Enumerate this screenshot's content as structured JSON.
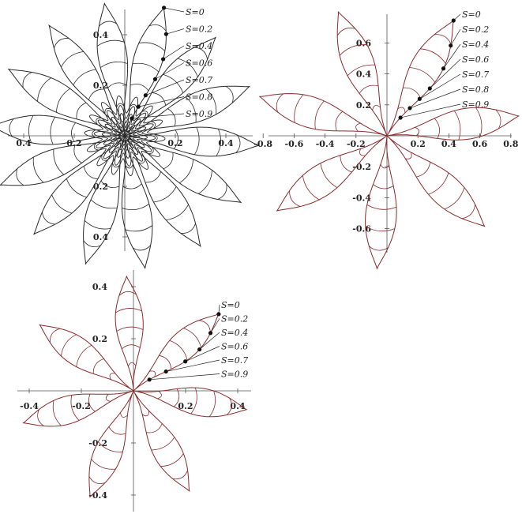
{
  "panels": [
    {
      "id": "panel-1",
      "color": "#2a2a2a",
      "petals": 14,
      "x_ticks": [
        {
          "value": -0.4,
          "label": "0.4"
        },
        {
          "value": -0.2,
          "label": "0.2"
        },
        {
          "value": 0.2,
          "label": "0.2"
        },
        {
          "value": 0.4,
          "label": "0.4"
        }
      ],
      "y_ticks": [
        {
          "value": 0.4,
          "label": "0.4"
        },
        {
          "value": 0.2,
          "label": "0.2"
        },
        {
          "value": -0.2,
          "label": "0.2"
        },
        {
          "value": -0.4,
          "label": "0.4"
        }
      ],
      "s_labels": [
        "S=0",
        "S=0.2",
        "S=0.4",
        "S=0.6",
        "S=0.7",
        "S=0.8",
        "S=0.9"
      ]
    },
    {
      "id": "panel-2",
      "color": "#8b2a2a",
      "petals": 7,
      "x_ticks": [
        {
          "value": -0.8,
          "label": "-0.8"
        },
        {
          "value": -0.6,
          "label": "-0.6"
        },
        {
          "value": -0.4,
          "label": "-0.4"
        },
        {
          "value": -0.2,
          "label": "-0.2"
        },
        {
          "value": 0.2,
          "label": "0.2"
        },
        {
          "value": 0.4,
          "label": "0.4"
        },
        {
          "value": 0.6,
          "label": "0.6"
        },
        {
          "value": 0.8,
          "label": "0.8"
        }
      ],
      "y_ticks": [
        {
          "value": 0.6,
          "label": "0.6"
        },
        {
          "value": 0.4,
          "label": "0.4"
        },
        {
          "value": 0.2,
          "label": "0.2"
        },
        {
          "value": -0.2,
          "label": "-0.2"
        },
        {
          "value": -0.4,
          "label": "-0.4"
        },
        {
          "value": -0.6,
          "label": "-0.6"
        }
      ],
      "s_labels": [
        "S=0",
        "S=0.2",
        "S=0.4",
        "S=0.6",
        "S=0.7",
        "S=0.8",
        "S=0.9"
      ]
    },
    {
      "id": "panel-3",
      "color": "#8b2a2a",
      "petals": 7,
      "x_ticks": [
        {
          "value": -0.4,
          "label": "-0.4"
        },
        {
          "value": -0.2,
          "label": "-0.2"
        },
        {
          "value": 0.2,
          "label": "0.2"
        },
        {
          "value": 0.4,
          "label": "0.4"
        }
      ],
      "y_ticks": [
        {
          "value": 0.4,
          "label": "0.4"
        },
        {
          "value": 0.2,
          "label": "0.2"
        },
        {
          "value": -0.2,
          "label": "-0.2"
        },
        {
          "value": -0.4,
          "label": "-0.4"
        }
      ],
      "s_labels": [
        "S=0",
        "S=0.2",
        "S=0.4",
        "S=0.6",
        "S=0.7",
        "S=0.9"
      ]
    }
  ]
}
